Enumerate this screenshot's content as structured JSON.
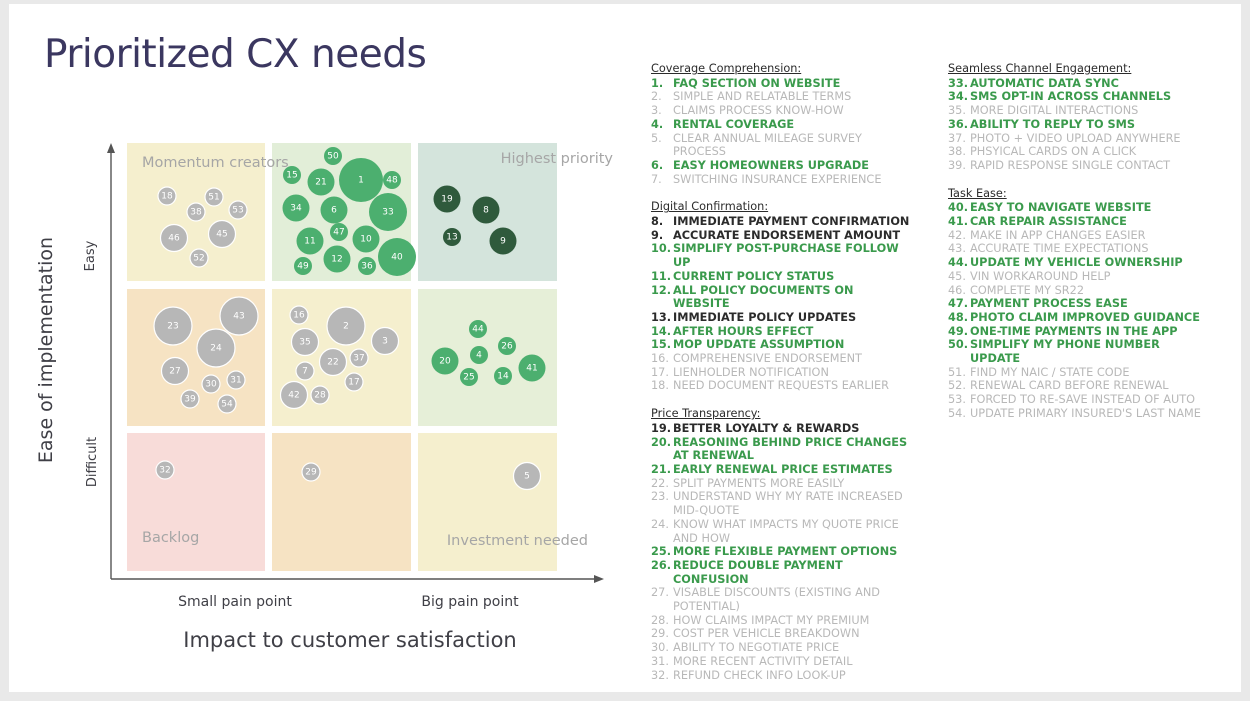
{
  "title": "Prioritized CX needs",
  "axes": {
    "x_label": "Impact to customer satisfaction",
    "y_label": "Ease of implementation",
    "x_low": "Small pain point",
    "x_high": "Big pain point",
    "y_high": "Easy",
    "y_low": "Difficult"
  },
  "quadrant_labels": {
    "momentum": "Momentum creators",
    "highest": "Highest priority",
    "backlog": "Backlog",
    "investment": "Investment needed"
  },
  "colors": {
    "green_bubble": "#4caf6f",
    "dark_bubble": "#2f5a3c",
    "gray_bubble": "#b7b7b7",
    "green_text": "#3a9a4c",
    "muted_text": "#b8b8b8"
  },
  "chart_data": {
    "type": "scatter",
    "title": "Prioritized CX needs",
    "xlabel": "Impact to customer satisfaction",
    "ylabel": "Ease of implementation",
    "bubbles": [
      {
        "n": "18",
        "cell": 0,
        "size": "s",
        "style": "gray"
      },
      {
        "n": "51",
        "cell": 0,
        "size": "s",
        "style": "gray"
      },
      {
        "n": "38",
        "cell": 0,
        "size": "s",
        "style": "gray"
      },
      {
        "n": "53",
        "cell": 0,
        "size": "s",
        "style": "gray"
      },
      {
        "n": "46",
        "cell": 0,
        "size": "m",
        "style": "gray"
      },
      {
        "n": "45",
        "cell": 0,
        "size": "m",
        "style": "gray"
      },
      {
        "n": "52",
        "cell": 0,
        "size": "s",
        "style": "gray"
      },
      {
        "n": "50",
        "cell": 1,
        "size": "s",
        "style": "green"
      },
      {
        "n": "15",
        "cell": 1,
        "size": "s",
        "style": "green"
      },
      {
        "n": "21",
        "cell": 1,
        "size": "m",
        "style": "green"
      },
      {
        "n": "1",
        "cell": 1,
        "size": "xl",
        "style": "green"
      },
      {
        "n": "48",
        "cell": 1,
        "size": "s",
        "style": "green"
      },
      {
        "n": "34",
        "cell": 1,
        "size": "m",
        "style": "green"
      },
      {
        "n": "6",
        "cell": 1,
        "size": "m",
        "style": "green"
      },
      {
        "n": "33",
        "cell": 1,
        "size": "l",
        "style": "green"
      },
      {
        "n": "47",
        "cell": 1,
        "size": "s",
        "style": "green"
      },
      {
        "n": "11",
        "cell": 1,
        "size": "m",
        "style": "green"
      },
      {
        "n": "10",
        "cell": 1,
        "size": "m",
        "style": "green"
      },
      {
        "n": "12",
        "cell": 1,
        "size": "m",
        "style": "green"
      },
      {
        "n": "36",
        "cell": 1,
        "size": "s",
        "style": "green"
      },
      {
        "n": "40",
        "cell": 1,
        "size": "l",
        "style": "green"
      },
      {
        "n": "49",
        "cell": 1,
        "size": "s",
        "style": "green"
      },
      {
        "n": "19",
        "cell": 2,
        "size": "m",
        "style": "dark"
      },
      {
        "n": "8",
        "cell": 2,
        "size": "m",
        "style": "dark"
      },
      {
        "n": "13",
        "cell": 2,
        "size": "s",
        "style": "dark"
      },
      {
        "n": "9",
        "cell": 2,
        "size": "m",
        "style": "dark"
      },
      {
        "n": "23",
        "cell": 3,
        "size": "l",
        "style": "gray"
      },
      {
        "n": "43",
        "cell": 3,
        "size": "l",
        "style": "gray"
      },
      {
        "n": "24",
        "cell": 3,
        "size": "l",
        "style": "gray"
      },
      {
        "n": "27",
        "cell": 3,
        "size": "m",
        "style": "gray"
      },
      {
        "n": "30",
        "cell": 3,
        "size": "s",
        "style": "gray"
      },
      {
        "n": "31",
        "cell": 3,
        "size": "s",
        "style": "gray"
      },
      {
        "n": "39",
        "cell": 3,
        "size": "s",
        "style": "gray"
      },
      {
        "n": "54",
        "cell": 3,
        "size": "s",
        "style": "gray"
      },
      {
        "n": "16",
        "cell": 4,
        "size": "s",
        "style": "gray"
      },
      {
        "n": "2",
        "cell": 4,
        "size": "l",
        "style": "gray"
      },
      {
        "n": "35",
        "cell": 4,
        "size": "m",
        "style": "gray"
      },
      {
        "n": "3",
        "cell": 4,
        "size": "m",
        "style": "gray"
      },
      {
        "n": "22",
        "cell": 4,
        "size": "m",
        "style": "gray"
      },
      {
        "n": "37",
        "cell": 4,
        "size": "s",
        "style": "gray"
      },
      {
        "n": "7",
        "cell": 4,
        "size": "s",
        "style": "gray"
      },
      {
        "n": "17",
        "cell": 4,
        "size": "s",
        "style": "gray"
      },
      {
        "n": "42",
        "cell": 4,
        "size": "m",
        "style": "gray"
      },
      {
        "n": "28",
        "cell": 4,
        "size": "s",
        "style": "gray"
      },
      {
        "n": "44",
        "cell": 5,
        "size": "s",
        "style": "green"
      },
      {
        "n": "26",
        "cell": 5,
        "size": "s",
        "style": "green"
      },
      {
        "n": "20",
        "cell": 5,
        "size": "m",
        "style": "green"
      },
      {
        "n": "4",
        "cell": 5,
        "size": "s",
        "style": "green"
      },
      {
        "n": "41",
        "cell": 5,
        "size": "m",
        "style": "green"
      },
      {
        "n": "25",
        "cell": 5,
        "size": "s",
        "style": "green"
      },
      {
        "n": "14",
        "cell": 5,
        "size": "s",
        "style": "green"
      },
      {
        "n": "32",
        "cell": 6,
        "size": "s",
        "style": "gray"
      },
      {
        "n": "29",
        "cell": 7,
        "size": "s",
        "style": "gray"
      },
      {
        "n": "5",
        "cell": 8,
        "size": "m",
        "style": "gray"
      }
    ]
  },
  "lists": {
    "col1": [
      {
        "heading": "Coverage Comprehension:",
        "items": [
          {
            "n": "1.",
            "text": "FAQ SECTION ON WEBSITE",
            "s": "g"
          },
          {
            "n": "2.",
            "text": "SIMPLE AND RELATABLE TERMS",
            "s": "m"
          },
          {
            "n": "3.",
            "text": "CLAIMS PROCESS KNOW-HOW",
            "s": "m"
          },
          {
            "n": "4.",
            "text": "RENTAL COVERAGE",
            "s": "g"
          },
          {
            "n": "5.",
            "text": "CLEAR ANNUAL MILEAGE SURVEY PROCESS",
            "s": "m"
          },
          {
            "n": "6.",
            "text": "EASY HOMEOWNERS UPGRADE",
            "s": "g"
          },
          {
            "n": "7.",
            "text": "SWITCHING INSURANCE EXPERIENCE",
            "s": "m"
          }
        ]
      },
      {
        "heading": "Digital Confirmation:",
        "items": [
          {
            "n": "8.",
            "text": "IMMEDIATE PAYMENT CONFIRMATION",
            "s": "d"
          },
          {
            "n": "9.",
            "text": "ACCURATE ENDORSEMENT AMOUNT",
            "s": "d"
          },
          {
            "n": "10.",
            "text": "SIMPLIFY POST-PURCHASE FOLLOW UP",
            "s": "g"
          },
          {
            "n": "11.",
            "text": "CURRENT POLICY STATUS",
            "s": "g"
          },
          {
            "n": "12.",
            "text": "ALL POLICY DOCUMENTS ON WEBSITE",
            "s": "g"
          },
          {
            "n": "13.",
            "text": "IMMEDIATE POLICY UPDATES",
            "s": "d"
          },
          {
            "n": "14.",
            "text": "AFTER HOURS EFFECT",
            "s": "g"
          },
          {
            "n": "15.",
            "text": "MOP UPDATE ASSUMPTION",
            "s": "g"
          },
          {
            "n": "16.",
            "text": "COMPREHENSIVE ENDORSEMENT",
            "s": "m"
          },
          {
            "n": "17.",
            "text": "LIENHOLDER NOTIFICATION",
            "s": "m"
          },
          {
            "n": "18.",
            "text": "NEED DOCUMENT REQUESTS EARLIER",
            "s": "m"
          }
        ]
      },
      {
        "heading": "Price Transparency:",
        "items": [
          {
            "n": "19.",
            "text": "BETTER LOYALTY & REWARDS",
            "s": "d"
          },
          {
            "n": "20.",
            "text": "REASONING BEHIND PRICE CHANGES AT RENEWAL",
            "s": "g"
          },
          {
            "n": "21.",
            "text": "EARLY RENEWAL PRICE ESTIMATES",
            "s": "g"
          },
          {
            "n": "22.",
            "text": "SPLIT PAYMENTS MORE EASILY",
            "s": "m"
          },
          {
            "n": "23.",
            "text": "UNDERSTAND WHY MY RATE INCREASED MID-QUOTE",
            "s": "m"
          },
          {
            "n": "24.",
            "text": "KNOW WHAT IMPACTS MY QUOTE PRICE AND HOW",
            "s": "m"
          },
          {
            "n": "25.",
            "text": "MORE FLEXIBLE PAYMENT OPTIONS",
            "s": "g"
          },
          {
            "n": "26.",
            "text": "REDUCE DOUBLE PAYMENT CONFUSION",
            "s": "g"
          },
          {
            "n": "27.",
            "text": "VISABLE DISCOUNTS (EXISTING AND POTENTIAL)",
            "s": "m"
          },
          {
            "n": "28.",
            "text": "HOW CLAIMS IMPACT MY PREMIUM",
            "s": "m"
          },
          {
            "n": "29.",
            "text": "COST PER VEHICLE BREAKDOWN",
            "s": "m"
          },
          {
            "n": "30.",
            "text": "ABILITY TO NEGOTIATE PRICE",
            "s": "m"
          },
          {
            "n": "31.",
            "text": "MORE RECENT ACTIVITY DETAIL",
            "s": "m"
          },
          {
            "n": "32.",
            "text": "REFUND CHECK INFO LOOK-UP",
            "s": "m"
          }
        ]
      }
    ],
    "col2": [
      {
        "heading": "Seamless Channel Engagement:",
        "items": [
          {
            "n": "33.",
            "text": "AUTOMATIC DATA SYNC",
            "s": "g"
          },
          {
            "n": "34.",
            "text": "SMS OPT-IN ACROSS CHANNELS",
            "s": "g"
          },
          {
            "n": "35.",
            "text": "MORE DIGITAL INTERACTIONS",
            "s": "m"
          },
          {
            "n": "36.",
            "text": "ABILITY TO REPLY TO SMS",
            "s": "g"
          },
          {
            "n": "37.",
            "text": "PHOTO + VIDEO UPLOAD ANYWHERE",
            "s": "m"
          },
          {
            "n": "38.",
            "text": "PHSYICAL CARDS ON A CLICK",
            "s": "m"
          },
          {
            "n": "39.",
            "text": "RAPID RESPONSE SINGLE CONTACT",
            "s": "m"
          }
        ]
      },
      {
        "heading": "Task Ease:",
        "items": [
          {
            "n": "40.",
            "text": "EASY TO NAVIGATE WEBSITE",
            "s": "g"
          },
          {
            "n": "41.",
            "text": "CAR REPAIR ASSISTANCE",
            "s": "g"
          },
          {
            "n": "42.",
            "text": "MAKE IN APP CHANGES EASIER",
            "s": "m"
          },
          {
            "n": "43.",
            "text": "ACCURATE TIME EXPECTATIONS",
            "s": "m"
          },
          {
            "n": "44.",
            "text": "UPDATE MY VEHICLE OWNERSHIP",
            "s": "g"
          },
          {
            "n": "45.",
            "text": "VIN WORKAROUND HELP",
            "s": "m"
          },
          {
            "n": "46.",
            "text": "COMPLETE MY SR22",
            "s": "m"
          },
          {
            "n": "47.",
            "text": "PAYMENT PROCESS EASE",
            "s": "g"
          },
          {
            "n": "48.",
            "text": "PHOTO CLAIM IMPROVED GUIDANCE",
            "s": "g"
          },
          {
            "n": "49.",
            "text": "ONE-TIME PAYMENTS IN THE APP",
            "s": "g"
          },
          {
            "n": "50.",
            "text": "SIMPLIFY MY PHONE NUMBER UPDATE",
            "s": "g"
          },
          {
            "n": "51.",
            "text": "FIND MY NAIC / STATE CODE",
            "s": "m"
          },
          {
            "n": "52.",
            "text": "RENEWAL CARD BEFORE RENEWAL",
            "s": "m"
          },
          {
            "n": "53.",
            "text": "FORCED TO RE-SAVE INSTEAD OF AUTO",
            "s": "m"
          },
          {
            "n": "54.",
            "text": "UPDATE PRIMARY INSURED'S LAST NAME",
            "s": "m"
          }
        ]
      }
    ]
  }
}
